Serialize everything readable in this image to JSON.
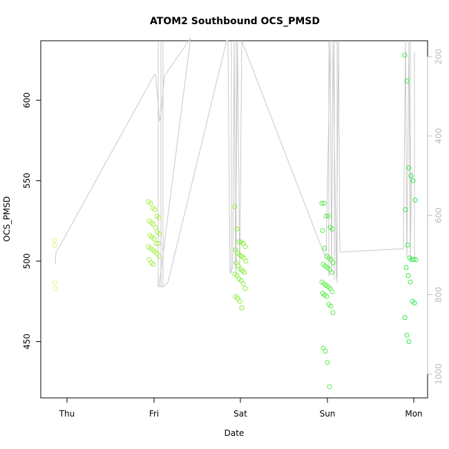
{
  "chart_data": {
    "type": "scatter",
    "title": "ATOM2 Southbound OCS_PMSD",
    "xlabel": "Date",
    "ylabel": "OCS_PMSD",
    "x_ticks": [
      "Thu",
      "Fri",
      "Sat",
      "Sun",
      "Mon"
    ],
    "y_ticks": [
      450,
      500,
      550,
      600
    ],
    "ylim": [
      415,
      637
    ],
    "y2_ticks": [
      200,
      400,
      600,
      800,
      1000
    ],
    "y2lim": [
      1060,
      160
    ],
    "grid": false,
    "colors": {
      "line": "#c8c8c8",
      "thu_points": "#e6f26a",
      "fri_points": "#a8ee44",
      "sat_points": "#86ec3a",
      "sun_points": "#55ea44",
      "mon_points": "#33e84a"
    },
    "series": [
      {
        "color_key": "thu_points",
        "points": [
          [
            "Thu",
            513
          ],
          [
            "Thu",
            509.5
          ],
          [
            "Thu",
            487
          ],
          [
            "Thu",
            483
          ]
        ]
      },
      {
        "color_key": "fri_points",
        "points": [
          [
            "Fri",
            537
          ],
          [
            "Fri",
            536
          ],
          [
            "Fri",
            533
          ],
          [
            "Fri",
            532
          ],
          [
            "Fri",
            528
          ],
          [
            "Fri",
            527
          ],
          [
            "Fri",
            525
          ],
          [
            "Fri",
            524
          ],
          [
            "Fri",
            523
          ],
          [
            "Fri",
            521
          ],
          [
            "Fri",
            518
          ],
          [
            "Fri",
            517
          ],
          [
            "Fri",
            516
          ],
          [
            "Fri",
            515
          ],
          [
            "Fri",
            514
          ],
          [
            "Fri",
            511
          ],
          [
            "Fri",
            511
          ],
          [
            "Fri",
            509
          ],
          [
            "Fri",
            508
          ],
          [
            "Fri",
            507
          ],
          [
            "Fri",
            506
          ],
          [
            "Fri",
            505
          ],
          [
            "Fri",
            503
          ],
          [
            "Fri",
            501
          ],
          [
            "Fri",
            499
          ],
          [
            "Fri",
            498
          ]
        ]
      },
      {
        "color_key": "sat_points",
        "points": [
          [
            "Sat",
            534
          ],
          [
            "Sat",
            520
          ],
          [
            "Sat",
            512
          ],
          [
            "Sat",
            512
          ],
          [
            "Sat",
            511
          ],
          [
            "Sat",
            509
          ],
          [
            "Sat",
            507
          ],
          [
            "Sat",
            505
          ],
          [
            "Sat",
            504
          ],
          [
            "Sat",
            503
          ],
          [
            "Sat",
            502
          ],
          [
            "Sat",
            500
          ],
          [
            "Sat",
            499
          ],
          [
            "Sat",
            497
          ],
          [
            "Sat",
            495
          ],
          [
            "Sat",
            494
          ],
          [
            "Sat",
            493
          ],
          [
            "Sat",
            492
          ],
          [
            "Sat",
            491
          ],
          [
            "Sat",
            489
          ],
          [
            "Sat",
            488
          ],
          [
            "Sat",
            486
          ],
          [
            "Sat",
            483
          ],
          [
            "Sat",
            478
          ],
          [
            "Sat",
            477
          ],
          [
            "Sat",
            475
          ],
          [
            "Sat",
            471
          ]
        ]
      },
      {
        "color_key": "sun_points",
        "points": [
          [
            "Sun",
            536
          ],
          [
            "Sun",
            536
          ],
          [
            "Sun",
            528
          ],
          [
            "Sun",
            528
          ],
          [
            "Sun",
            521
          ],
          [
            "Sun",
            520
          ],
          [
            "Sun",
            519
          ],
          [
            "Sun",
            508
          ],
          [
            "Sun",
            503
          ],
          [
            "Sun",
            502
          ],
          [
            "Sun",
            501
          ],
          [
            "Sun",
            499
          ],
          [
            "Sun",
            498
          ],
          [
            "Sun",
            497
          ],
          [
            "Sun",
            496
          ],
          [
            "Sun",
            495
          ],
          [
            "Sun",
            493
          ],
          [
            "Sun",
            487
          ],
          [
            "Sun",
            486
          ],
          [
            "Sun",
            485
          ],
          [
            "Sun",
            484
          ],
          [
            "Sun",
            483
          ],
          [
            "Sun",
            481
          ],
          [
            "Sun",
            480
          ],
          [
            "Sun",
            479
          ],
          [
            "Sun",
            478
          ],
          [
            "Sun",
            473
          ],
          [
            "Sun",
            472
          ],
          [
            "Sun",
            468
          ],
          [
            "Sun",
            446
          ],
          [
            "Sun",
            444
          ],
          [
            "Sun",
            437
          ],
          [
            "Sun",
            422
          ]
        ]
      },
      {
        "color_key": "mon_points",
        "points": [
          [
            "Mon",
            628
          ],
          [
            "Mon",
            612
          ],
          [
            "Mon",
            558
          ],
          [
            "Mon",
            553
          ],
          [
            "Mon",
            550
          ],
          [
            "Mon",
            538
          ],
          [
            "Mon",
            532
          ],
          [
            "Mon",
            510
          ],
          [
            "Mon",
            502
          ],
          [
            "Mon",
            501
          ],
          [
            "Mon",
            501
          ],
          [
            "Mon",
            501
          ],
          [
            "Mon",
            496
          ],
          [
            "Mon",
            491
          ],
          [
            "Mon",
            487
          ],
          [
            "Mon",
            475
          ],
          [
            "Mon",
            474
          ],
          [
            "Mon",
            465
          ],
          [
            "Mon",
            454
          ],
          [
            "Mon",
            450
          ]
        ]
      }
    ]
  }
}
